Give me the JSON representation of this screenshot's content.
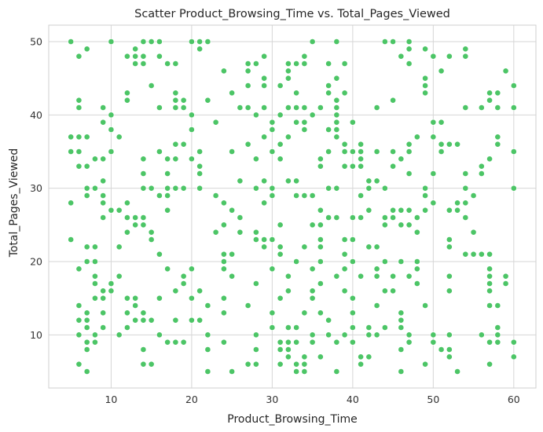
{
  "chart_data": {
    "type": "scatter",
    "title": "Scatter Product_Browsing_Time vs. Total_Pages_Viewed",
    "xlabel": "Product_Browsing_Time",
    "ylabel": "Total_Pages_Viewed",
    "xlim": [
      2.25,
      62.75
    ],
    "ylim": [
      2.75,
      52.25
    ],
    "xticks": [
      10,
      20,
      30,
      40,
      50,
      60
    ],
    "yticks": [
      10,
      20,
      30,
      40,
      50
    ],
    "grid": true,
    "legend": "none",
    "marker_color": "#4cc566",
    "background": "#ffffff",
    "grid_color": "#d6d6d6",
    "points": [
      [
        5,
        50
      ],
      [
        5,
        37
      ],
      [
        5,
        35
      ],
      [
        5,
        28
      ],
      [
        5,
        23
      ],
      [
        6,
        48
      ],
      [
        6,
        42
      ],
      [
        6,
        41
      ],
      [
        6,
        37
      ],
      [
        6,
        35
      ],
      [
        6,
        33
      ],
      [
        6,
        19
      ],
      [
        6,
        14
      ],
      [
        6,
        12
      ],
      [
        6,
        10
      ],
      [
        6,
        6
      ],
      [
        7,
        49
      ],
      [
        7,
        37
      ],
      [
        7,
        33
      ],
      [
        7,
        30
      ],
      [
        7,
        29
      ],
      [
        7,
        22
      ],
      [
        7,
        20
      ],
      [
        7,
        13
      ],
      [
        7,
        12
      ],
      [
        7,
        11
      ],
      [
        7,
        9
      ],
      [
        7,
        8
      ],
      [
        7,
        5
      ],
      [
        8,
        34
      ],
      [
        8,
        30
      ],
      [
        8,
        22
      ],
      [
        8,
        20
      ],
      [
        8,
        18
      ],
      [
        8,
        17
      ],
      [
        8,
        15
      ],
      [
        8,
        10
      ],
      [
        8,
        9
      ],
      [
        9,
        41
      ],
      [
        9,
        39
      ],
      [
        9,
        34
      ],
      [
        9,
        31
      ],
      [
        9,
        29
      ],
      [
        9,
        28
      ],
      [
        9,
        26
      ],
      [
        9,
        16
      ],
      [
        9,
        15
      ],
      [
        9,
        13
      ],
      [
        9,
        11
      ],
      [
        10,
        50
      ],
      [
        10,
        40
      ],
      [
        10,
        38
      ],
      [
        10,
        35
      ],
      [
        10,
        27
      ],
      [
        10,
        17
      ],
      [
        10,
        16
      ],
      [
        11,
        37
      ],
      [
        11,
        27
      ],
      [
        11,
        22
      ],
      [
        11,
        18
      ],
      [
        11,
        10
      ],
      [
        12,
        48
      ],
      [
        12,
        43
      ],
      [
        12,
        42
      ],
      [
        12,
        28
      ],
      [
        12,
        26
      ],
      [
        12,
        24
      ],
      [
        12,
        15
      ],
      [
        12,
        13
      ],
      [
        12,
        11
      ],
      [
        13,
        49
      ],
      [
        13,
        48
      ],
      [
        13,
        47
      ],
      [
        13,
        26
      ],
      [
        13,
        25
      ],
      [
        13,
        15
      ],
      [
        13,
        14
      ],
      [
        13,
        12
      ],
      [
        14,
        50
      ],
      [
        14,
        48
      ],
      [
        14,
        47
      ],
      [
        14,
        34
      ],
      [
        14,
        32
      ],
      [
        14,
        30
      ],
      [
        14,
        26
      ],
      [
        14,
        25
      ],
      [
        14,
        13
      ],
      [
        14,
        12
      ],
      [
        14,
        8
      ],
      [
        14,
        6
      ],
      [
        15,
        50
      ],
      [
        15,
        44
      ],
      [
        15,
        30
      ],
      [
        15,
        24
      ],
      [
        15,
        23
      ],
      [
        15,
        12
      ],
      [
        15,
        6
      ],
      [
        16,
        50
      ],
      [
        16,
        48
      ],
      [
        16,
        41
      ],
      [
        16,
        35
      ],
      [
        16,
        29
      ],
      [
        16,
        21
      ],
      [
        16,
        15
      ],
      [
        16,
        10
      ],
      [
        17,
        47
      ],
      [
        17,
        34
      ],
      [
        17,
        32
      ],
      [
        17,
        30
      ],
      [
        17,
        29
      ],
      [
        17,
        27
      ],
      [
        17,
        19
      ],
      [
        17,
        9
      ],
      [
        18,
        47
      ],
      [
        18,
        43
      ],
      [
        18,
        42
      ],
      [
        18,
        41
      ],
      [
        18,
        36
      ],
      [
        18,
        34
      ],
      [
        18,
        30
      ],
      [
        18,
        16
      ],
      [
        18,
        12
      ],
      [
        18,
        9
      ],
      [
        19,
        42
      ],
      [
        19,
        41
      ],
      [
        19,
        36
      ],
      [
        19,
        30
      ],
      [
        19,
        18
      ],
      [
        19,
        17
      ],
      [
        19,
        9
      ],
      [
        20,
        50
      ],
      [
        20,
        40
      ],
      [
        20,
        38
      ],
      [
        20,
        34
      ],
      [
        20,
        19
      ],
      [
        20,
        15
      ],
      [
        20,
        12
      ],
      [
        21,
        50
      ],
      [
        21,
        49
      ],
      [
        21,
        35
      ],
      [
        21,
        33
      ],
      [
        21,
        32
      ],
      [
        21,
        30
      ],
      [
        21,
        16
      ],
      [
        21,
        12
      ],
      [
        22,
        50
      ],
      [
        22,
        42
      ],
      [
        22,
        14
      ],
      [
        22,
        10
      ],
      [
        22,
        8
      ],
      [
        22,
        5
      ],
      [
        23,
        39
      ],
      [
        23,
        29
      ],
      [
        23,
        24
      ],
      [
        24,
        46
      ],
      [
        24,
        28
      ],
      [
        24,
        25
      ],
      [
        24,
        21
      ],
      [
        24,
        20
      ],
      [
        24,
        19
      ],
      [
        24,
        15
      ],
      [
        24,
        13
      ],
      [
        24,
        9
      ],
      [
        25,
        43
      ],
      [
        25,
        35
      ],
      [
        25,
        27
      ],
      [
        25,
        21
      ],
      [
        25,
        18
      ],
      [
        25,
        5
      ],
      [
        26,
        41
      ],
      [
        26,
        31
      ],
      [
        26,
        26
      ],
      [
        26,
        24
      ],
      [
        27,
        47
      ],
      [
        27,
        46
      ],
      [
        27,
        44
      ],
      [
        27,
        41
      ],
      [
        27,
        36
      ],
      [
        27,
        14
      ],
      [
        27,
        6
      ],
      [
        28,
        47
      ],
      [
        28,
        40
      ],
      [
        28,
        34
      ],
      [
        28,
        30
      ],
      [
        28,
        24
      ],
      [
        28,
        23
      ],
      [
        28,
        17
      ],
      [
        28,
        10
      ],
      [
        28,
        8
      ],
      [
        28,
        6
      ],
      [
        29,
        48
      ],
      [
        29,
        45
      ],
      [
        29,
        44
      ],
      [
        29,
        41
      ],
      [
        29,
        37
      ],
      [
        29,
        31
      ],
      [
        29,
        28
      ],
      [
        29,
        22
      ],
      [
        29,
        23
      ],
      [
        30,
        39
      ],
      [
        30,
        38
      ],
      [
        30,
        35
      ],
      [
        30,
        30
      ],
      [
        30,
        29
      ],
      [
        30,
        23
      ],
      [
        30,
        19
      ],
      [
        30,
        13
      ],
      [
        30,
        11
      ],
      [
        31,
        44
      ],
      [
        31,
        40
      ],
      [
        31,
        36
      ],
      [
        31,
        34
      ],
      [
        31,
        25
      ],
      [
        31,
        22
      ],
      [
        31,
        21
      ],
      [
        31,
        15
      ],
      [
        31,
        9
      ],
      [
        31,
        8
      ],
      [
        31,
        6
      ],
      [
        32,
        47
      ],
      [
        32,
        46
      ],
      [
        32,
        45
      ],
      [
        32,
        41
      ],
      [
        32,
        37
      ],
      [
        32,
        31
      ],
      [
        32,
        18
      ],
      [
        32,
        16
      ],
      [
        32,
        11
      ],
      [
        32,
        9
      ],
      [
        32,
        8
      ],
      [
        32,
        7
      ],
      [
        33,
        47
      ],
      [
        33,
        43
      ],
      [
        33,
        41
      ],
      [
        33,
        39
      ],
      [
        33,
        31
      ],
      [
        33,
        29
      ],
      [
        33,
        20
      ],
      [
        33,
        11
      ],
      [
        33,
        9
      ],
      [
        33,
        6
      ],
      [
        33,
        5
      ],
      [
        34,
        48
      ],
      [
        34,
        47
      ],
      [
        34,
        41
      ],
      [
        34,
        39
      ],
      [
        34,
        38
      ],
      [
        34,
        29
      ],
      [
        34,
        22
      ],
      [
        34,
        13
      ],
      [
        34,
        7
      ],
      [
        34,
        6
      ],
      [
        34,
        5
      ],
      [
        35,
        50
      ],
      [
        35,
        40
      ],
      [
        35,
        29
      ],
      [
        35,
        25
      ],
      [
        35,
        19
      ],
      [
        35,
        16
      ],
      [
        35,
        15
      ],
      [
        35,
        10
      ],
      [
        35,
        9
      ],
      [
        36,
        41
      ],
      [
        36,
        34
      ],
      [
        36,
        33
      ],
      [
        36,
        27
      ],
      [
        36,
        25
      ],
      [
        36,
        23
      ],
      [
        36,
        22
      ],
      [
        36,
        20
      ],
      [
        36,
        17
      ],
      [
        36,
        13
      ],
      [
        36,
        7
      ],
      [
        37,
        47
      ],
      [
        37,
        44
      ],
      [
        37,
        43
      ],
      [
        37,
        38
      ],
      [
        37,
        35
      ],
      [
        37,
        30
      ],
      [
        37,
        26
      ],
      [
        37,
        12
      ],
      [
        37,
        10
      ],
      [
        38,
        50
      ],
      [
        38,
        45
      ],
      [
        38,
        42
      ],
      [
        38,
        41
      ],
      [
        38,
        40
      ],
      [
        38,
        39
      ],
      [
        38,
        38
      ],
      [
        38,
        37
      ],
      [
        38,
        30
      ],
      [
        38,
        26
      ],
      [
        38,
        18
      ],
      [
        38,
        9
      ],
      [
        38,
        5
      ],
      [
        39,
        47
      ],
      [
        39,
        43
      ],
      [
        39,
        36
      ],
      [
        39,
        35
      ],
      [
        39,
        33
      ],
      [
        39,
        23
      ],
      [
        39,
        21
      ],
      [
        39,
        19
      ],
      [
        39,
        16
      ],
      [
        39,
        10
      ],
      [
        40,
        39
      ],
      [
        40,
        35
      ],
      [
        40,
        33
      ],
      [
        40,
        26
      ],
      [
        40,
        23
      ],
      [
        40,
        20
      ],
      [
        40,
        15
      ],
      [
        40,
        13
      ],
      [
        40,
        11
      ],
      [
        40,
        9
      ],
      [
        41,
        36
      ],
      [
        41,
        35
      ],
      [
        41,
        34
      ],
      [
        41,
        33
      ],
      [
        41,
        29
      ],
      [
        41,
        26
      ],
      [
        41,
        18
      ],
      [
        41,
        7
      ],
      [
        41,
        6
      ],
      [
        42,
        31
      ],
      [
        42,
        30
      ],
      [
        42,
        27
      ],
      [
        42,
        22
      ],
      [
        42,
        11
      ],
      [
        42,
        10
      ],
      [
        42,
        7
      ],
      [
        43,
        41
      ],
      [
        43,
        35
      ],
      [
        43,
        31
      ],
      [
        43,
        22
      ],
      [
        43,
        19
      ],
      [
        43,
        18
      ],
      [
        43,
        14
      ],
      [
        43,
        10
      ],
      [
        44,
        50
      ],
      [
        44,
        30
      ],
      [
        44,
        26
      ],
      [
        44,
        25
      ],
      [
        44,
        20
      ],
      [
        44,
        16
      ],
      [
        44,
        11
      ],
      [
        45,
        50
      ],
      [
        45,
        42
      ],
      [
        45,
        35
      ],
      [
        45,
        33
      ],
      [
        45,
        27
      ],
      [
        45,
        26
      ],
      [
        45,
        18
      ],
      [
        45,
        16
      ],
      [
        46,
        48
      ],
      [
        46,
        34
      ],
      [
        46,
        27
      ],
      [
        46,
        25
      ],
      [
        46,
        20
      ],
      [
        46,
        13
      ],
      [
        46,
        12
      ],
      [
        46,
        11
      ],
      [
        46,
        8
      ],
      [
        46,
        5
      ],
      [
        47,
        50
      ],
      [
        47,
        49
      ],
      [
        47,
        47
      ],
      [
        47,
        36
      ],
      [
        47,
        35
      ],
      [
        47,
        32
      ],
      [
        47,
        27
      ],
      [
        47,
        25
      ],
      [
        47,
        18
      ],
      [
        47,
        10
      ],
      [
        47,
        9
      ],
      [
        48,
        37
      ],
      [
        48,
        26
      ],
      [
        48,
        24
      ],
      [
        48,
        20
      ],
      [
        48,
        19
      ],
      [
        48,
        17
      ],
      [
        49,
        49
      ],
      [
        49,
        45
      ],
      [
        49,
        44
      ],
      [
        49,
        43
      ],
      [
        49,
        30
      ],
      [
        49,
        29
      ],
      [
        49,
        27
      ],
      [
        49,
        14
      ],
      [
        49,
        6
      ],
      [
        50,
        48
      ],
      [
        50,
        39
      ],
      [
        50,
        37
      ],
      [
        50,
        32
      ],
      [
        50,
        28
      ],
      [
        50,
        10
      ],
      [
        50,
        9
      ],
      [
        51,
        46
      ],
      [
        51,
        39
      ],
      [
        51,
        36
      ],
      [
        51,
        35
      ],
      [
        51,
        8
      ],
      [
        52,
        48
      ],
      [
        52,
        36
      ],
      [
        52,
        27
      ],
      [
        52,
        23
      ],
      [
        52,
        22
      ],
      [
        52,
        18
      ],
      [
        52,
        16
      ],
      [
        52,
        10
      ],
      [
        52,
        8
      ],
      [
        52,
        7
      ],
      [
        53,
        36
      ],
      [
        53,
        28
      ],
      [
        53,
        27
      ],
      [
        53,
        5
      ],
      [
        54,
        49
      ],
      [
        54,
        48
      ],
      [
        54,
        41
      ],
      [
        54,
        32
      ],
      [
        54,
        30
      ],
      [
        54,
        28
      ],
      [
        54,
        26
      ],
      [
        54,
        21
      ],
      [
        55,
        29
      ],
      [
        55,
        24
      ],
      [
        55,
        21
      ],
      [
        56,
        41
      ],
      [
        56,
        33
      ],
      [
        56,
        32
      ],
      [
        56,
        21
      ],
      [
        56,
        10
      ],
      [
        57,
        43
      ],
      [
        57,
        42
      ],
      [
        57,
        34
      ],
      [
        57,
        21
      ],
      [
        57,
        19
      ],
      [
        57,
        18
      ],
      [
        57,
        17
      ],
      [
        57,
        16
      ],
      [
        57,
        14
      ],
      [
        57,
        9
      ],
      [
        57,
        6
      ],
      [
        58,
        43
      ],
      [
        58,
        41
      ],
      [
        58,
        37
      ],
      [
        58,
        36
      ],
      [
        58,
        14
      ],
      [
        58,
        11
      ],
      [
        58,
        10
      ],
      [
        58,
        9
      ],
      [
        59,
        46
      ],
      [
        59,
        18
      ],
      [
        59,
        17
      ],
      [
        60,
        44
      ],
      [
        60,
        41
      ],
      [
        60,
        35
      ],
      [
        60,
        30
      ],
      [
        60,
        9
      ],
      [
        60,
        7
      ]
    ]
  }
}
